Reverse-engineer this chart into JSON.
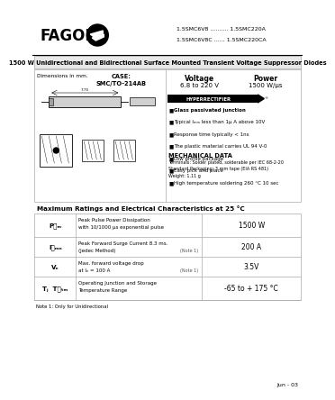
{
  "bg_color": "#ffffff",
  "title_line": "1500 W Unidirectional and Bidirectional Surface Mounted Transient Voltage Suppressor Diodes",
  "part_numbers_line1": "1.5SMC6V8 .......... 1.5SMC220A",
  "part_numbers_line2": "1.5SMC6V8C ...... 1.5SMC220CA",
  "company": "FAGOR",
  "features": [
    "Glass passivated junction",
    "Typical Iₘₘ less than 1μ A above 10V",
    "Response time typically < 1ns",
    "The plastic material carries UL 94 V-0",
    "Low profile package",
    "Easy pick and place",
    "High temperature soldering 260 °C 10 sec"
  ],
  "mech_title": "MECHANICAL DATA",
  "mech_lines": [
    "Terminals: Solder plated, solderable per IEC 68-2-20",
    "Standard Packaging: 3 mm tape (EIA RS 481)",
    "Weight: 1.11 g"
  ],
  "table_title": "Maximum Ratings and Electrical Characteristics at 25 °C",
  "table_rows": [
    {
      "symbol": "P₝ₘ",
      "desc1": "Peak Pulse Power Dissipation",
      "desc2": "with 10/1000 μs exponential pulse",
      "note": "",
      "value": "1500 W"
    },
    {
      "symbol": "I₝ₘₙ",
      "desc1": "Peak Forward Surge Current 8.3 ms.",
      "desc2": "(Jedec Method)",
      "note": "(Note 1)",
      "value": "200 A"
    },
    {
      "symbol": "Vₑ",
      "desc1": "Max. forward voltage drop",
      "desc2": "at Iₑ = 100 A",
      "note": "(Note 1)",
      "value": "3.5V"
    },
    {
      "symbol": "Tⱼ  T₝ₜₘ",
      "desc1": "Operating Junction and Storage",
      "desc2": "Temperature Range",
      "note": "",
      "value": "-65 to + 175 °C"
    }
  ],
  "note_text": "Note 1: Only for Unidirectional",
  "date_text": "Jun - 03",
  "hyperrectifier": "HYPERRECTIFIER",
  "case_title": "CASE:",
  "case_sub": "SMC/TO-214AB",
  "voltage_title": "Voltage",
  "voltage_val": "6.8 to 220 V",
  "power_title": "Power",
  "power_val": "1500 W/μs",
  "dim_label": "Dimensions in mm.",
  "border_color": "#aaaaaa",
  "gray_bg": "#e8e8e8",
  "light_gray": "#f0f0f0"
}
